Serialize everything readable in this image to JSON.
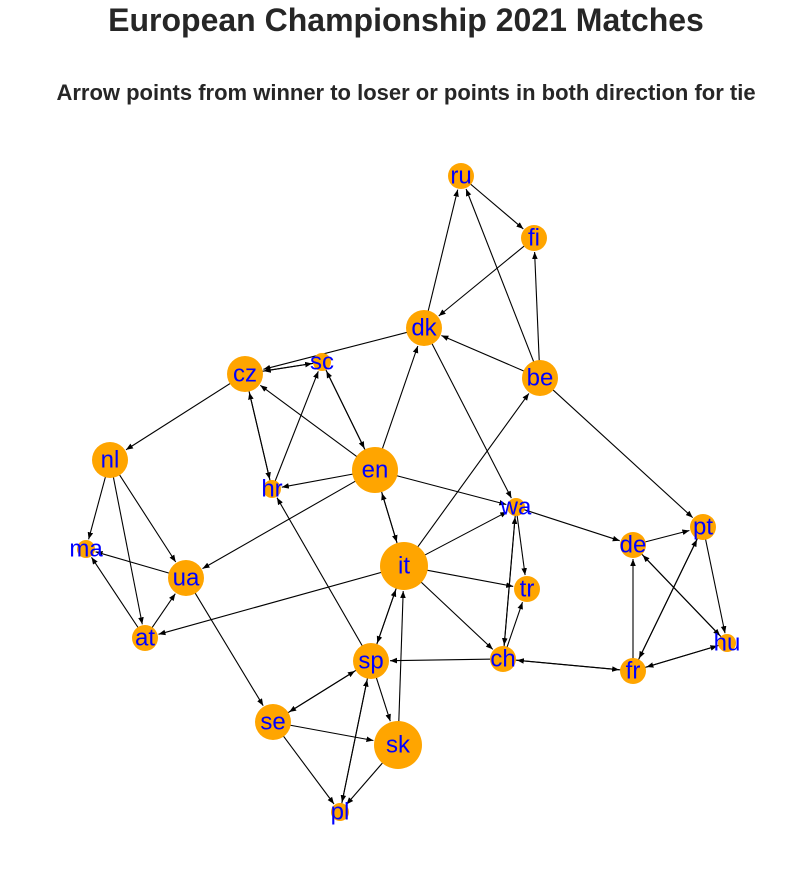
{
  "title": "European Championship 2021 Matches",
  "subtitle": "Arrow points from winner to loser or points in both direction for tie",
  "colors": {
    "node": "#FFA500",
    "label": "#0000FF",
    "edge": "#000000"
  },
  "nodes": [
    {
      "id": "ru",
      "label": "ru",
      "size": "small"
    },
    {
      "id": "fi",
      "label": "fi",
      "size": "small"
    },
    {
      "id": "dk",
      "label": "dk",
      "size": "medium"
    },
    {
      "id": "be",
      "label": "be",
      "size": "medium"
    },
    {
      "id": "cz",
      "label": "cz",
      "size": "medium"
    },
    {
      "id": "sc",
      "label": "sc",
      "size": "none"
    },
    {
      "id": "nl",
      "label": "nl",
      "size": "medium"
    },
    {
      "id": "en",
      "label": "en",
      "size": "large"
    },
    {
      "id": "hr",
      "label": "hr",
      "size": "none"
    },
    {
      "id": "wa",
      "label": "wa",
      "size": "none"
    },
    {
      "id": "pt",
      "label": "pt",
      "size": "small"
    },
    {
      "id": "de",
      "label": "de",
      "size": "small"
    },
    {
      "id": "ma",
      "label": "ma",
      "size": "none"
    },
    {
      "id": "ua",
      "label": "ua",
      "size": "medium"
    },
    {
      "id": "it",
      "label": "it",
      "size": "xlarge"
    },
    {
      "id": "tr",
      "label": "tr",
      "size": "small"
    },
    {
      "id": "at",
      "label": "at",
      "size": "small"
    },
    {
      "id": "hu",
      "label": "hu",
      "size": "none"
    },
    {
      "id": "sp",
      "label": "sp",
      "size": "medium"
    },
    {
      "id": "ch",
      "label": "ch",
      "size": "small"
    },
    {
      "id": "fr",
      "label": "fr",
      "size": "small"
    },
    {
      "id": "se",
      "label": "se",
      "size": "medium"
    },
    {
      "id": "sk",
      "label": "sk",
      "size": "xlarge"
    },
    {
      "id": "pl",
      "label": "pl",
      "size": "none"
    }
  ],
  "edges": [
    {
      "from": "ru",
      "to": "fi"
    },
    {
      "from": "fi",
      "to": "dk"
    },
    {
      "from": "dk",
      "to": "ru"
    },
    {
      "from": "be",
      "to": "ru"
    },
    {
      "from": "be",
      "to": "fi"
    },
    {
      "from": "be",
      "to": "dk"
    },
    {
      "from": "be",
      "to": "pt"
    },
    {
      "from": "dk",
      "to": "cz"
    },
    {
      "from": "dk",
      "to": "wa"
    },
    {
      "from": "en",
      "to": "dk"
    },
    {
      "from": "it",
      "to": "be"
    },
    {
      "from": "cz",
      "to": "sc"
    },
    {
      "from": "sc",
      "to": "cz"
    },
    {
      "from": "cz",
      "to": "nl"
    },
    {
      "from": "cz",
      "to": "hr"
    },
    {
      "from": "hr",
      "to": "cz"
    },
    {
      "from": "hr",
      "to": "sc"
    },
    {
      "from": "en",
      "to": "sc"
    },
    {
      "from": "sc",
      "to": "en"
    },
    {
      "from": "en",
      "to": "cz"
    },
    {
      "from": "en",
      "to": "hr"
    },
    {
      "from": "en",
      "to": "ua"
    },
    {
      "from": "en",
      "to": "wa"
    },
    {
      "from": "en",
      "to": "it"
    },
    {
      "from": "it",
      "to": "en"
    },
    {
      "from": "nl",
      "to": "ma"
    },
    {
      "from": "nl",
      "to": "ua"
    },
    {
      "from": "nl",
      "to": "at"
    },
    {
      "from": "ua",
      "to": "ma"
    },
    {
      "from": "at",
      "to": "ma"
    },
    {
      "from": "at",
      "to": "ua"
    },
    {
      "from": "ua",
      "to": "se"
    },
    {
      "from": "it",
      "to": "at"
    },
    {
      "from": "it",
      "to": "wa"
    },
    {
      "from": "it",
      "to": "tr"
    },
    {
      "from": "it",
      "to": "ch"
    },
    {
      "from": "it",
      "to": "sp"
    },
    {
      "from": "sp",
      "to": "it"
    },
    {
      "from": "sk",
      "to": "it"
    },
    {
      "from": "wa",
      "to": "de"
    },
    {
      "from": "wa",
      "to": "tr"
    },
    {
      "from": "wa",
      "to": "ch"
    },
    {
      "from": "ch",
      "to": "wa"
    },
    {
      "from": "ch",
      "to": "tr"
    },
    {
      "from": "ch",
      "to": "sp"
    },
    {
      "from": "ch",
      "to": "fr"
    },
    {
      "from": "fr",
      "to": "ch"
    },
    {
      "from": "de",
      "to": "pt"
    },
    {
      "from": "pt",
      "to": "hu"
    },
    {
      "from": "pt",
      "to": "fr"
    },
    {
      "from": "fr",
      "to": "pt"
    },
    {
      "from": "de",
      "to": "hu"
    },
    {
      "from": "hu",
      "to": "de"
    },
    {
      "from": "hu",
      "to": "fr"
    },
    {
      "from": "fr",
      "to": "hu"
    },
    {
      "from": "fr",
      "to": "de"
    },
    {
      "from": "sp",
      "to": "hr"
    },
    {
      "from": "sp",
      "to": "se"
    },
    {
      "from": "se",
      "to": "sp"
    },
    {
      "from": "sp",
      "to": "sk"
    },
    {
      "from": "sp",
      "to": "pl"
    },
    {
      "from": "pl",
      "to": "sp"
    },
    {
      "from": "se",
      "to": "sk"
    },
    {
      "from": "se",
      "to": "pl"
    },
    {
      "from": "sk",
      "to": "pl"
    }
  ]
}
